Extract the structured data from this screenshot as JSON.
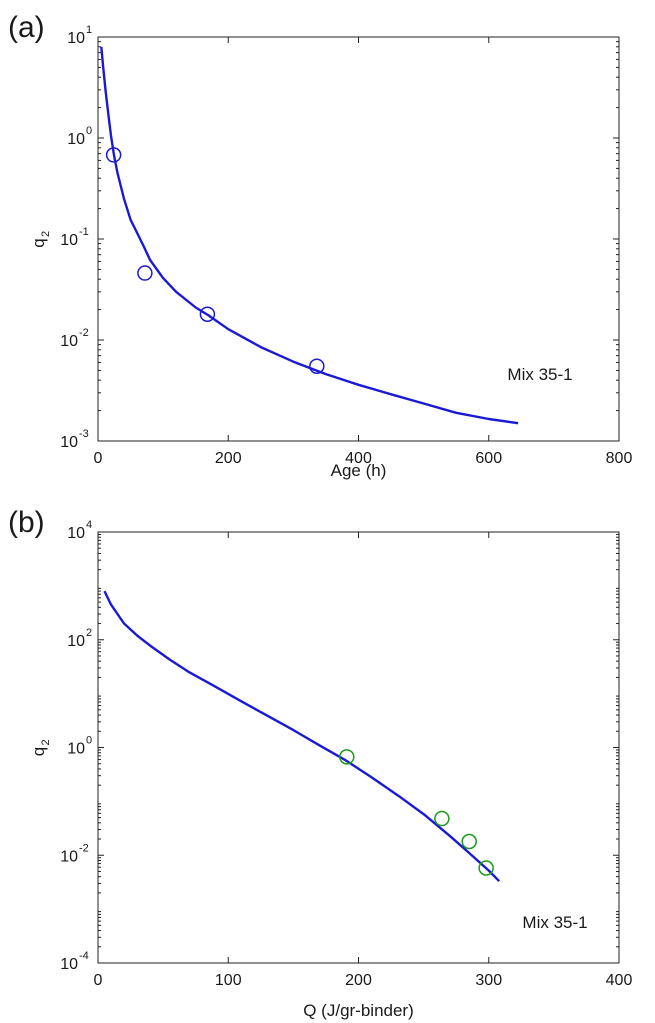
{
  "chart_data": [
    {
      "type": "line",
      "panel_label": "(a)",
      "xlabel": "Age (h)",
      "ylabel_main": "q",
      "ylabel_sub": "2",
      "annotation": "Mix 35-1",
      "yscale": "log",
      "xlim": [
        0,
        800
      ],
      "ylim": [
        0.001,
        10
      ],
      "xticks": [
        0,
        200,
        400,
        600,
        800
      ],
      "xtick_labels": [
        "0",
        "200",
        "400",
        "600",
        "800"
      ],
      "ytick_exps": [
        1,
        0,
        -1,
        -2,
        -3
      ],
      "ytick_base": "10",
      "ytick_exp_labels": [
        "1",
        "0",
        "-1",
        "-2",
        "-3"
      ],
      "grid": false,
      "series": [
        {
          "kind": "line",
          "color": "#1a1ad6",
          "x": [
            5,
            8,
            12,
            16,
            20,
            25,
            30,
            40,
            50,
            60,
            70,
            80,
            100,
            120,
            150,
            170,
            200,
            250,
            300,
            350,
            400,
            450,
            500,
            550,
            600,
            645
          ],
          "y": [
            8.0,
            5.0,
            2.8,
            1.7,
            1.05,
            0.65,
            0.45,
            0.25,
            0.155,
            0.115,
            0.085,
            0.062,
            0.041,
            0.03,
            0.021,
            0.0175,
            0.0128,
            0.0085,
            0.0061,
            0.0046,
            0.0036,
            0.0029,
            0.00235,
            0.0019,
            0.00165,
            0.0015
          ]
        },
        {
          "kind": "scatter",
          "marker": "open-circle",
          "color": "#1a1ad6",
          "x": [
            24,
            72,
            168,
            336
          ],
          "y": [
            0.68,
            0.046,
            0.018,
            0.0055
          ]
        }
      ]
    },
    {
      "type": "line",
      "panel_label": "(b)",
      "xlabel": "Q (J/gr-binder)",
      "ylabel_main": "q",
      "ylabel_sub": "2",
      "annotation": "Mix 35-1",
      "yscale": "log",
      "xlim": [
        0,
        400
      ],
      "ylim": [
        0.0001,
        10000
      ],
      "xticks": [
        0,
        100,
        200,
        300,
        400
      ],
      "xtick_labels": [
        "0",
        "100",
        "200",
        "300",
        "400"
      ],
      "ytick_exps": [
        4,
        2,
        0,
        -2,
        -4
      ],
      "ytick_base": "10",
      "ytick_exp_labels": [
        "4",
        "2",
        "0",
        "-2",
        "-4"
      ],
      "grid": false,
      "series": [
        {
          "kind": "line",
          "color": "#1a1ad6",
          "x": [
            5,
            10,
            20,
            30,
            40,
            55,
            70,
            90,
            110,
            130,
            150,
            170,
            190,
            210,
            230,
            250,
            270,
            285,
            300,
            308
          ],
          "y": [
            800,
            450,
            200,
            120,
            78,
            43,
            25,
            13.5,
            7.2,
            3.9,
            2.1,
            1.1,
            0.58,
            0.28,
            0.13,
            0.058,
            0.023,
            0.011,
            0.0052,
            0.0033
          ]
        },
        {
          "kind": "scatter",
          "marker": "open-circle",
          "color": "#1a9a1a",
          "x": [
            191,
            264,
            285,
            298
          ],
          "y": [
            0.67,
            0.048,
            0.018,
            0.0058
          ]
        }
      ]
    }
  ]
}
